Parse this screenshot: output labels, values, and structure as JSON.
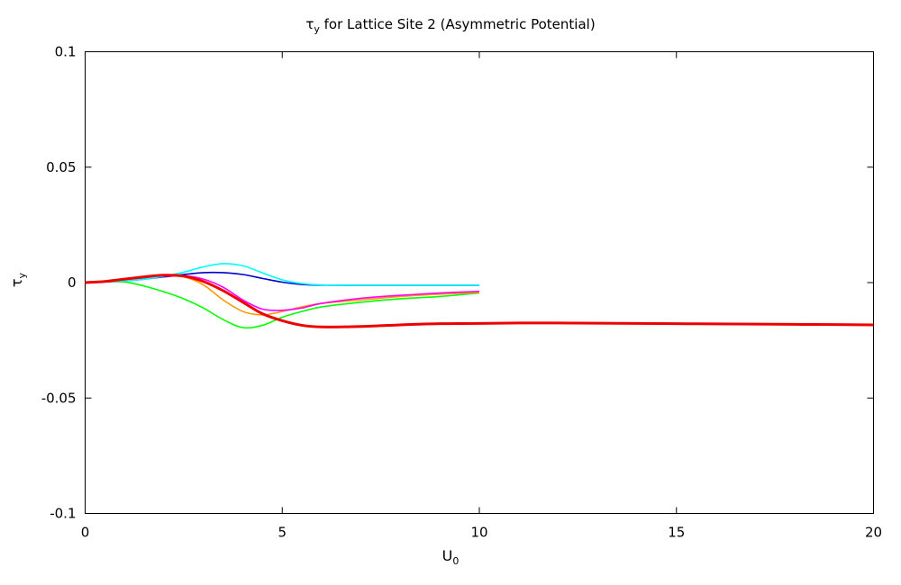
{
  "chart_data": {
    "type": "line",
    "title": {
      "main": "τ",
      "sub": "y",
      "rest": " for Lattice Site 2 (Asymmetric Potential)"
    },
    "xlabel": {
      "main": "U",
      "sub": "0"
    },
    "ylabel": {
      "main": "τ",
      "sub": "y"
    },
    "xlim": [
      0,
      20
    ],
    "ylim": [
      -0.1,
      0.1
    ],
    "xticks": [
      {
        "value": 0,
        "label": "0"
      },
      {
        "value": 5,
        "label": "5"
      },
      {
        "value": 10,
        "label": "10"
      },
      {
        "value": 15,
        "label": "15"
      },
      {
        "value": 20,
        "label": "20"
      }
    ],
    "yticks": [
      {
        "value": 0.1,
        "label": "0.1"
      },
      {
        "value": 0.05,
        "label": "0.05"
      },
      {
        "value": 0,
        "label": "0"
      },
      {
        "value": -0.05,
        "label": "-0.05"
      },
      {
        "value": -0.1,
        "label": "-0.1"
      }
    ],
    "grid": false,
    "series": [
      {
        "color": "#00ff00",
        "x": [
          0,
          0.5,
          1,
          1.5,
          2,
          2.5,
          3,
          3.5,
          4,
          4.5,
          5,
          5.5,
          6,
          7,
          8,
          9,
          10
        ],
        "y": [
          0,
          0.0003,
          0.0003,
          -0.0015,
          -0.004,
          -0.007,
          -0.011,
          -0.016,
          -0.0195,
          -0.0185,
          -0.015,
          -0.0125,
          -0.0105,
          -0.0085,
          -0.007,
          -0.006,
          -0.0045
        ]
      },
      {
        "color": "#ff9900",
        "x": [
          0,
          0.5,
          1,
          1.5,
          2,
          2.5,
          3,
          3.5,
          4,
          4.5,
          5,
          5.5,
          6,
          7,
          8,
          9,
          10
        ],
        "y": [
          0,
          0.0005,
          0.0015,
          0.0025,
          0.003,
          0.0025,
          -0.001,
          -0.0075,
          -0.0125,
          -0.014,
          -0.0125,
          -0.0105,
          -0.009,
          -0.0075,
          -0.006,
          -0.005,
          -0.0043
        ]
      },
      {
        "color": "#ff00ff",
        "x": [
          0,
          0.5,
          1,
          1.5,
          2,
          2.5,
          3,
          3.5,
          4,
          4.5,
          5,
          5.5,
          6,
          7,
          8,
          9,
          10
        ],
        "y": [
          0,
          0.0005,
          0.001,
          0.0018,
          0.0025,
          0.003,
          0.0015,
          -0.002,
          -0.0075,
          -0.0115,
          -0.012,
          -0.011,
          -0.009,
          -0.0068,
          -0.0055,
          -0.0045,
          -0.0038
        ]
      },
      {
        "color": "#0000cc",
        "x": [
          0,
          0.5,
          1,
          1.5,
          2,
          2.5,
          3,
          3.5,
          4,
          4.5,
          5,
          5.5,
          6,
          7,
          8,
          9,
          10
        ],
        "y": [
          0,
          0.0003,
          0.0008,
          0.0015,
          0.0025,
          0.0035,
          0.0043,
          0.0043,
          0.0035,
          0.0018,
          0.0002,
          -0.0008,
          -0.0011,
          -0.0012,
          -0.0012,
          -0.0012,
          -0.0012
        ]
      },
      {
        "color": "#00ffff",
        "x": [
          0,
          0.5,
          1,
          1.5,
          2,
          2.5,
          3,
          3.5,
          4,
          4.5,
          5,
          5.5,
          6,
          7,
          8,
          9,
          10
        ],
        "y": [
          0,
          0.0003,
          0.0008,
          0.0015,
          0.0028,
          0.0045,
          0.0068,
          0.0082,
          0.0073,
          0.0042,
          0.0012,
          -0.0004,
          -0.001,
          -0.0012,
          -0.0012,
          -0.0012,
          -0.0012
        ]
      },
      {
        "color": "#ee0000",
        "width": 3,
        "x": [
          0,
          0.5,
          1,
          1.5,
          2,
          2.5,
          3,
          3.5,
          4,
          4.5,
          5,
          5.5,
          6,
          7,
          8,
          9,
          10,
          11,
          12,
          13,
          14,
          15,
          16,
          17,
          18,
          19,
          20
        ],
        "y": [
          0,
          0.0005,
          0.0015,
          0.0025,
          0.0032,
          0.0028,
          0.0005,
          -0.0035,
          -0.0085,
          -0.0135,
          -0.0165,
          -0.0185,
          -0.0192,
          -0.019,
          -0.0183,
          -0.0178,
          -0.0177,
          -0.0175,
          -0.0175,
          -0.0176,
          -0.0177,
          -0.0178,
          -0.0179,
          -0.018,
          -0.0181,
          -0.0182,
          -0.0183
        ]
      }
    ]
  }
}
